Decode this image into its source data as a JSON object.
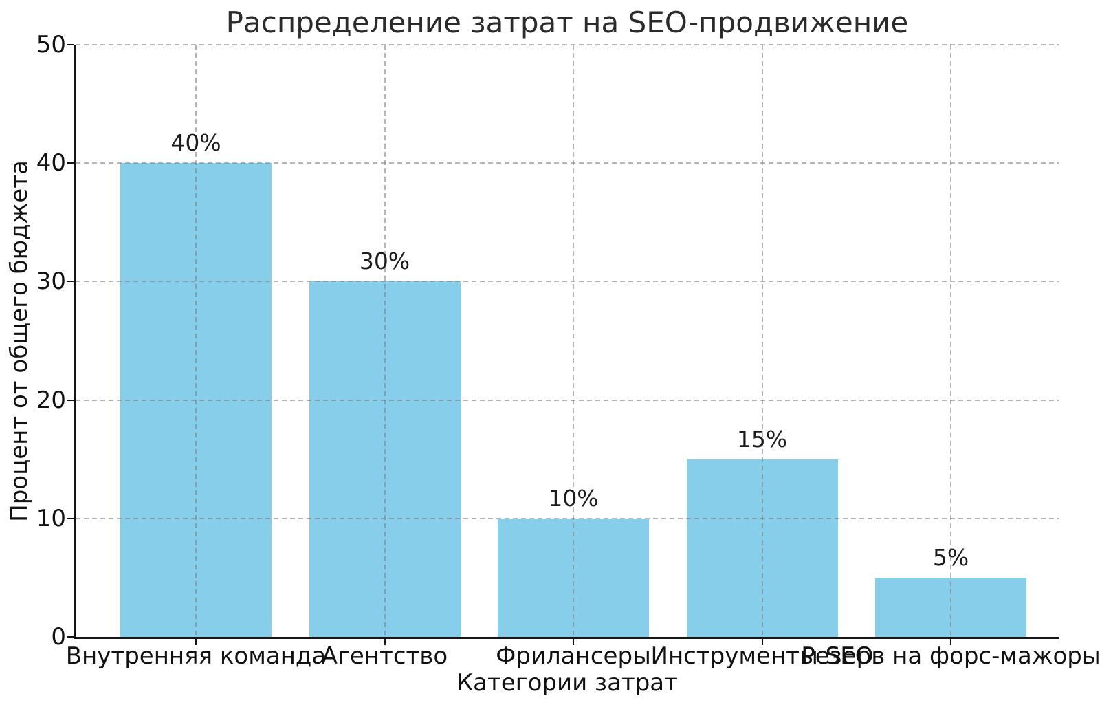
{
  "chart_data": {
    "type": "bar",
    "title": "Распределение затрат на SEO-продвижение",
    "xlabel": "Категории затрат",
    "ylabel": "Процент от общего бюджета",
    "categories": [
      "Внутренняя команда",
      "Агентство",
      "Фрилансеры",
      "Инструменты SEO",
      "Резерв на форс-мажоры"
    ],
    "values": [
      40,
      30,
      10,
      15,
      5
    ],
    "bar_labels": [
      "40%",
      "30%",
      "10%",
      "15%",
      "5%"
    ],
    "ylim": [
      0,
      50
    ],
    "yticks": [
      0,
      10,
      20,
      30,
      40,
      50
    ],
    "legend": "none",
    "grid": "both axes, dashed, drawn above bars",
    "bar_color": "#87CEEB",
    "grid_color": "#7a7a7a",
    "grid_alpha": 0.55,
    "spine_color": "#151515",
    "text_color": "#111111"
  }
}
